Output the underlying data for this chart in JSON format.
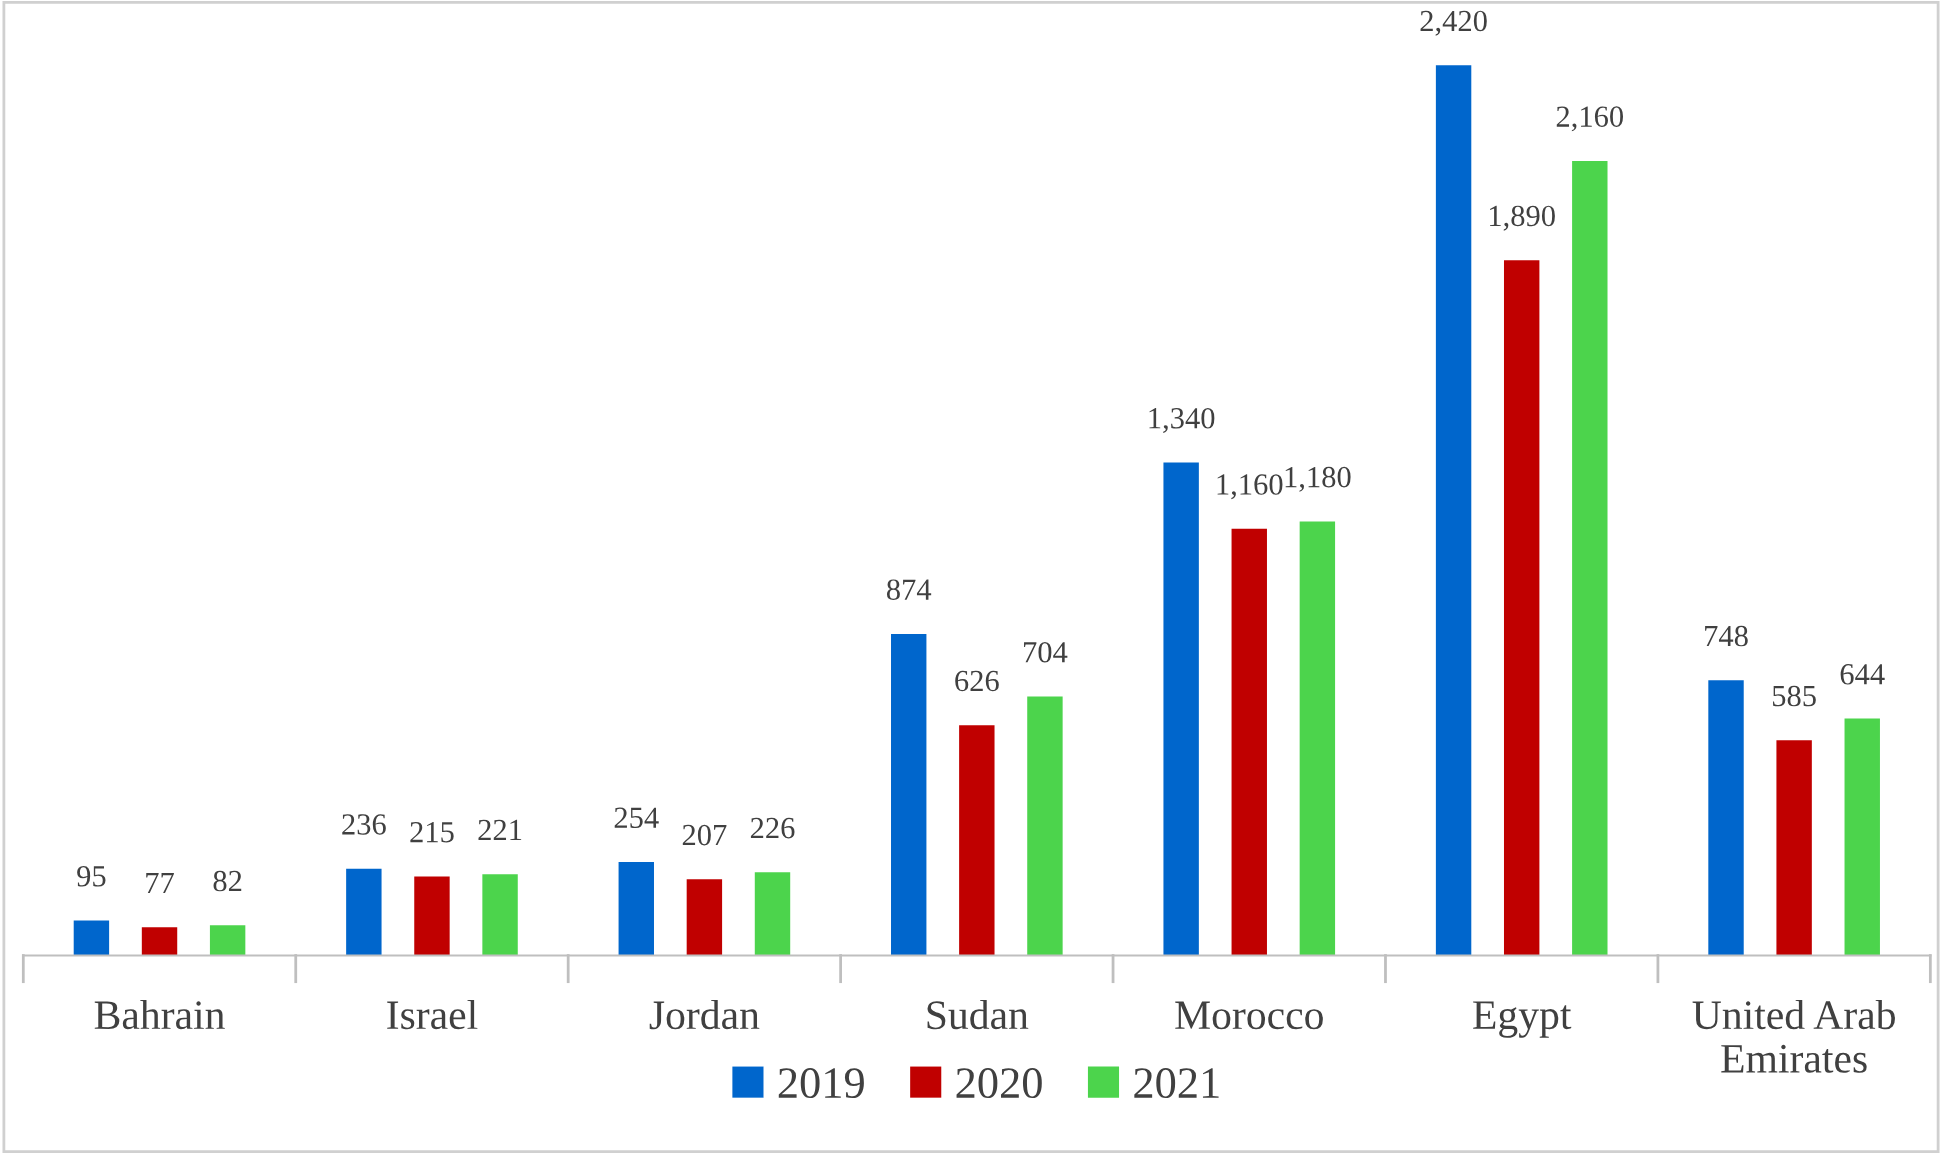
{
  "chart_data": {
    "type": "bar",
    "categories": [
      "Bahrain",
      "Israel",
      "Jordan",
      "Sudan",
      "Morocco",
      "Egypt",
      "United Arab Emirates"
    ],
    "series": [
      {
        "name": "2019",
        "color": "#0066cc",
        "values": [
          95,
          236,
          254,
          874,
          1340,
          2420,
          748
        ],
        "value_labels": [
          "95",
          "236",
          "254",
          "874",
          "1,340",
          "2,420",
          "748"
        ]
      },
      {
        "name": "2020",
        "color": "#c00000",
        "values": [
          77,
          215,
          207,
          626,
          1160,
          1890,
          585
        ],
        "value_labels": [
          "77",
          "215",
          "207",
          "626",
          "1,160",
          "1,890",
          "585"
        ]
      },
      {
        "name": "2021",
        "color": "#4cd44c",
        "values": [
          82,
          221,
          226,
          704,
          1180,
          2160,
          644
        ],
        "value_labels": [
          "82",
          "221",
          "226",
          "704",
          "1,180",
          "2,160",
          "644"
        ]
      }
    ],
    "legend": "bottom",
    "tick_labels": "x"
  }
}
